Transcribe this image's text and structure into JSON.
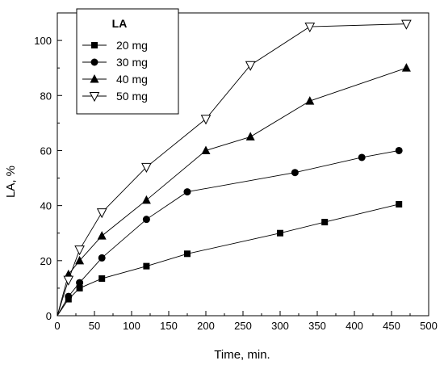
{
  "chart_data": {
    "type": "line",
    "xlabel": "Time, min.",
    "ylabel": "LA, %",
    "xlim": [
      0,
      500
    ],
    "ylim": [
      0,
      110
    ],
    "xticks": [
      0,
      50,
      100,
      150,
      200,
      250,
      300,
      350,
      400,
      450,
      500
    ],
    "yticks": [
      0,
      20,
      40,
      60,
      80,
      100
    ],
    "grid": false,
    "legend": {
      "title": "LA",
      "placement": "top-left"
    },
    "series": [
      {
        "name": "20 mg",
        "marker": "square",
        "x": [
          0,
          15,
          30,
          60,
          120,
          175,
          300,
          360,
          460
        ],
        "y": [
          0,
          6,
          10,
          13.5,
          18,
          22.5,
          30,
          34,
          40.5
        ]
      },
      {
        "name": "30 mg",
        "marker": "circle",
        "x": [
          0,
          15,
          30,
          60,
          120,
          175,
          320,
          410,
          460
        ],
        "y": [
          0,
          7,
          12,
          21,
          35,
          45,
          52,
          57.5,
          60
        ]
      },
      {
        "name": "40 mg",
        "marker": "triangle-up",
        "x": [
          0,
          15,
          30,
          60,
          120,
          200,
          260,
          340,
          470
        ],
        "y": [
          0,
          15,
          20,
          29,
          42,
          60,
          65,
          78,
          90
        ]
      },
      {
        "name": "50 mg",
        "marker": "triangle-down-open",
        "x": [
          0,
          15,
          30,
          60,
          120,
          200,
          260,
          340,
          470
        ],
        "y": [
          0,
          13,
          24,
          37.5,
          54,
          71.5,
          91,
          105,
          106
        ]
      }
    ]
  }
}
